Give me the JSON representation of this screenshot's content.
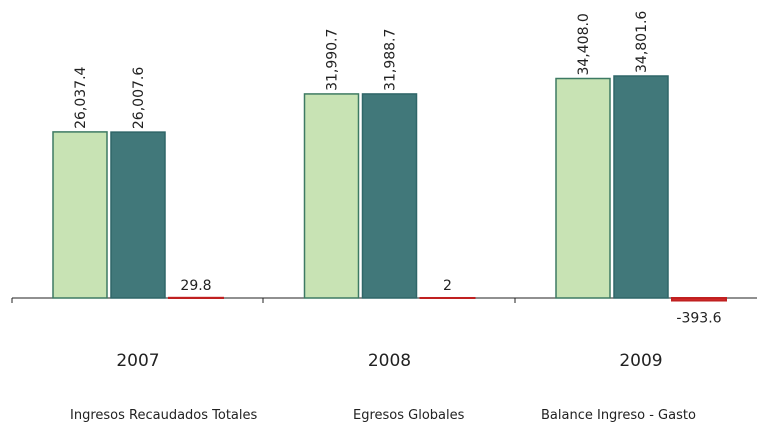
{
  "chart_data": {
    "type": "bar",
    "categories": [
      "2007",
      "2008",
      "2009"
    ],
    "series": [
      {
        "name": "Ingresos Recaudados Totales",
        "color": "#c8e3b4",
        "values": [
          26037.4,
          31990.7,
          34408.0
        ],
        "value_labels": [
          "26,037.4",
          "31,990.7",
          "34,408.0"
        ]
      },
      {
        "name": "Egresos Globales",
        "color": "#41787a",
        "values": [
          26007.6,
          31988.7,
          34801.6
        ],
        "value_labels": [
          "26,007.6",
          "31,988.7",
          "34,801.6"
        ]
      },
      {
        "name": "Balance Ingreso - Gasto",
        "color": "#e03030",
        "values": [
          29.8,
          2.0,
          -393.6
        ]
      }
    ]
  }
}
